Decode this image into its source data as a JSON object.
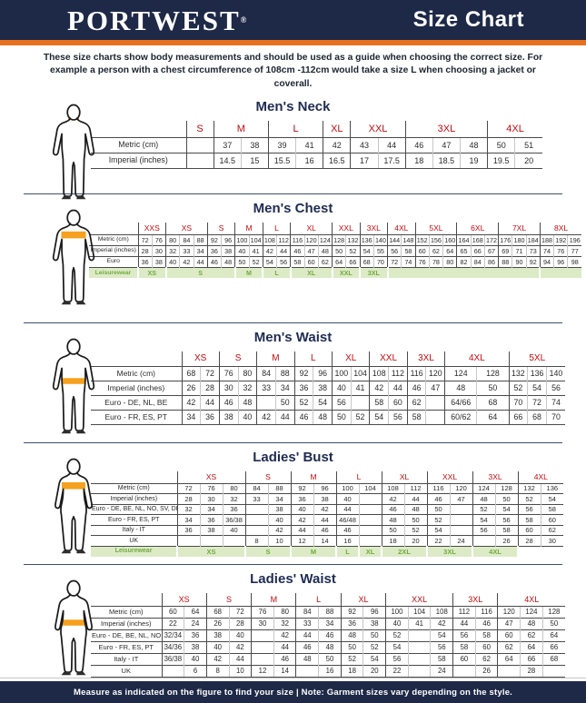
{
  "header": {
    "brand": "PORTWEST",
    "brand_reg": "®",
    "title": "Size Chart"
  },
  "intro": "These size charts show body measurements and should be used as a guide when choosing the correct size. For example a person with a chest circumference of 108cm -112cm would take a size L when choosing a jacket or coverall.",
  "footer": "Measure as indicated on the figure to find your size  |  Note: Garment sizes vary depending on the style.",
  "colors": {
    "navy": "#1e2947",
    "orange": "#e87120",
    "size_red": "#c20a10",
    "leisure_green_text": "#74a93f",
    "leisure_green_bg": "#dcebc6",
    "figure_highlight": "#f5a01e"
  },
  "sections": [
    {
      "title": "Men's Neck",
      "figure": {
        "body": "male",
        "highlight": "neck"
      },
      "table": {
        "groups": [
          {
            "label": "S",
            "span": 1
          },
          {
            "label": "M",
            "span": 2
          },
          {
            "label": "L",
            "span": 2
          },
          {
            "label": "XL",
            "span": 1
          },
          {
            "label": "XXL",
            "span": 2
          },
          {
            "label": "3XL",
            "span": 3
          },
          {
            "label": "4XL",
            "span": 2
          }
        ],
        "rows": [
          {
            "label": "Metric  (cm)",
            "cells": [
              "",
              "37",
              "38",
              "39",
              "41",
              "42",
              "43",
              "44",
              "46",
              "47",
              "48",
              "50",
              "51"
            ]
          },
          {
            "label": "Imperial (inches)",
            "cells": [
              "",
              "14.5",
              "15",
              "15.5",
              "16",
              "16.5",
              "17",
              "17.5",
              "18",
              "18.5",
              "19",
              "19.5",
              "20"
            ]
          }
        ]
      }
    },
    {
      "title": "Men's Chest",
      "figure": {
        "body": "male",
        "highlight": "chest"
      },
      "table": {
        "groups": [
          {
            "label": "XXS",
            "span": 2
          },
          {
            "label": "XS",
            "span": 3
          },
          {
            "label": "S",
            "span": 2
          },
          {
            "label": "M",
            "span": 2
          },
          {
            "label": "L",
            "span": 2
          },
          {
            "label": "XL",
            "span": 3
          },
          {
            "label": "XXL",
            "span": 2
          },
          {
            "label": "3XL",
            "span": 2
          },
          {
            "label": "4XL",
            "span": 2
          },
          {
            "label": "5XL",
            "span": 3
          },
          {
            "label": "6XL",
            "span": 3
          },
          {
            "label": "7XL",
            "span": 3
          },
          {
            "label": "8XL",
            "span": 3
          }
        ],
        "rows": [
          {
            "label": "Metric  (cm)",
            "cells": [
              "72",
              "76",
              "80",
              "84",
              "88",
              "92",
              "96",
              "100",
              "104",
              "108",
              "112",
              "116",
              "120",
              "124",
              "128",
              "132",
              "136",
              "140",
              "144",
              "148",
              "152",
              "156",
              "160",
              "164",
              "168",
              "172",
              "176",
              "180",
              "184",
              "188",
              "192",
              "196"
            ]
          },
          {
            "label": "Imperial (inches)",
            "cells": [
              "28",
              "30",
              "32",
              "33",
              "34",
              "36",
              "38",
              "40",
              "41",
              "42",
              "44",
              "46",
              "47",
              "48",
              "50",
              "52",
              "54",
              "55",
              "56",
              "58",
              "60",
              "62",
              "64",
              "65",
              "66",
              "67",
              "69",
              "71",
              "73",
              "74",
              "76",
              "77"
            ]
          },
          {
            "label": "Euro",
            "cells": [
              "36",
              "38",
              "40",
              "42",
              "44",
              "46",
              "48",
              "50",
              "52",
              "54",
              "56",
              "58",
              "60",
              "62",
              "64",
              "66",
              "68",
              "70",
              "72",
              "74",
              "76",
              "78",
              "80",
              "82",
              "84",
              "86",
              "88",
              "90",
              "92",
              "94",
              "96",
              "98"
            ]
          },
          {
            "label": "Leisurewear",
            "cls": "leisure",
            "cells": [
              {
                "t": "XS",
                "s": 2
              },
              {
                "t": "S",
                "s": 5
              },
              {
                "t": "M",
                "s": 2
              },
              {
                "t": "L",
                "s": 2
              },
              {
                "t": "XL",
                "s": 3
              },
              {
                "t": "XXL",
                "s": 2
              },
              {
                "t": "3XL",
                "s": 2
              },
              {
                "t": "",
                "s": 11
              },
              {
                "t": "",
                "s": 3
              }
            ]
          }
        ]
      }
    },
    {
      "title": "Men's Waist",
      "figure": {
        "body": "male",
        "highlight": "waist"
      },
      "table": {
        "groups": [
          {
            "label": "XS",
            "span": 2
          },
          {
            "label": "S",
            "span": 2
          },
          {
            "label": "M",
            "span": 2
          },
          {
            "label": "L",
            "span": 2
          },
          {
            "label": "XL",
            "span": 2
          },
          {
            "label": "XXL",
            "span": 2
          },
          {
            "label": "3XL",
            "span": 2
          },
          {
            "label": "4XL",
            "span": 2,
            "w": 1.7
          },
          {
            "label": "5XL",
            "span": 3
          }
        ],
        "rows": [
          {
            "label": "Metric  (cm)",
            "cells": [
              "68",
              "72",
              "76",
              "80",
              "84",
              "88",
              "92",
              "96",
              "100",
              "104",
              "108",
              "112",
              "116",
              "120",
              "124",
              "128",
              "132",
              "136",
              "140"
            ]
          },
          {
            "label": "Imperial (inches)",
            "cells": [
              "26",
              "28",
              "30",
              "32",
              "33",
              "34",
              "36",
              "38",
              "40",
              "41",
              "42",
              "44",
              "46",
              "47",
              "48",
              "50",
              "52",
              "54",
              "56"
            ]
          },
          {
            "label": "Euro - DE, NL, BE",
            "cells": [
              "42",
              "44",
              "46",
              "48",
              "",
              "50",
              "52",
              "54",
              "56",
              "",
              "58",
              "60",
              "62",
              "",
              "64/66",
              "68",
              "70",
              "72",
              "74"
            ]
          },
          {
            "label": "Euro - FR, ES, PT",
            "cells": [
              "34",
              "36",
              "38",
              "40",
              "42",
              "44",
              "46",
              "48",
              "50",
              "52",
              "54",
              "56",
              "58",
              "",
              "60/62",
              "64",
              "66",
              "68",
              "70"
            ]
          }
        ]
      }
    },
    {
      "title": "Ladies' Bust",
      "figure": {
        "body": "female",
        "highlight": "bust"
      },
      "table": {
        "groups": [
          {
            "label": "XS",
            "span": 3
          },
          {
            "label": "S",
            "span": 2
          },
          {
            "label": "M",
            "span": 2
          },
          {
            "label": "L",
            "span": 2
          },
          {
            "label": "XL",
            "span": 2
          },
          {
            "label": "XXL",
            "span": 2
          },
          {
            "label": "3XL",
            "span": 2
          },
          {
            "label": "4XL",
            "span": 2
          }
        ],
        "rows": [
          {
            "label": "Metric  (cm)",
            "cells": [
              "72",
              "76",
              "80",
              "84",
              "88",
              "92",
              "96",
              "100",
              "104",
              "108",
              "112",
              "116",
              "120",
              "124",
              "128",
              "132",
              "136"
            ]
          },
          {
            "label": "Imperial (inches)",
            "cells": [
              "28",
              "30",
              "32",
              "33",
              "34",
              "36",
              "38",
              "40",
              "",
              "42",
              "44",
              "46",
              "47",
              "48",
              "50",
              "52",
              "54"
            ]
          },
          {
            "label": "Euro -  DE, BE, NL, NO, SV, DK",
            "cells": [
              "32",
              "34",
              "36",
              "",
              "38",
              "40",
              "42",
              "44",
              "",
              "46",
              "48",
              "50",
              "",
              "52",
              "54",
              "56",
              "58"
            ]
          },
          {
            "label": "Euro - FR, ES, PT",
            "cells": [
              "34",
              "36",
              "36/38",
              "",
              "40",
              "42",
              "44",
              "46/48",
              "",
              "48",
              "50",
              "52",
              "",
              "54",
              "56",
              "58",
              "60"
            ]
          },
          {
            "label": "Italy - IT",
            "cells": [
              "36",
              "38",
              "40",
              "",
              "42",
              "44",
              "46",
              "46",
              "",
              "50",
              "52",
              "54",
              "",
              "56",
              "58",
              "60",
              "62"
            ]
          },
          {
            "label": "UK",
            "cells": [
              "",
              "",
              "",
              "8",
              "10",
              "12",
              "14",
              "16",
              "",
              "18",
              "20",
              "22",
              "24",
              "",
              "26",
              "28",
              "30"
            ]
          },
          {
            "label": "Leisurewear",
            "cls": "leisure",
            "cells": [
              {
                "t": "XS",
                "s": 3
              },
              {
                "t": "S",
                "s": 2
              },
              {
                "t": "M",
                "s": 2
              },
              {
                "t": "L",
                "s": 1
              },
              {
                "t": "XL",
                "s": 1
              },
              {
                "t": "2XL",
                "s": 2
              },
              {
                "t": "3XL",
                "s": 2
              },
              {
                "t": "4XL",
                "s": 2
              },
              {
                "t": "",
                "s": 2,
                "plain": true
              }
            ]
          }
        ]
      }
    },
    {
      "title": "Ladies' Waist",
      "figure": {
        "body": "female",
        "highlight": "waist"
      },
      "table": {
        "groups": [
          {
            "label": "XS",
            "span": 2
          },
          {
            "label": "S",
            "span": 2
          },
          {
            "label": "M",
            "span": 2
          },
          {
            "label": "L",
            "span": 2
          },
          {
            "label": "XL",
            "span": 2
          },
          {
            "label": "XXL",
            "span": 3
          },
          {
            "label": "3XL",
            "span": 2
          },
          {
            "label": "4XL",
            "span": 3
          }
        ],
        "rows": [
          {
            "label": "Metric  (cm)",
            "cells": [
              "60",
              "64",
              "68",
              "72",
              "76",
              "80",
              "84",
              "88",
              "92",
              "96",
              "100",
              "104",
              "108",
              "112",
              "116",
              "120",
              "124",
              "128"
            ]
          },
          {
            "label": "Imperial (inches)",
            "cells": [
              "22",
              "24",
              "26",
              "28",
              "30",
              "32",
              "33",
              "34",
              "36",
              "38",
              "40",
              "41",
              "42",
              "44",
              "46",
              "47",
              "48",
              "50"
            ]
          },
          {
            "label": "Euro - DE, BE, NL, NO, SV, DK",
            "cells": [
              "32/34",
              "36",
              "38",
              "40",
              "",
              "42",
              "44",
              "46",
              "48",
              "50",
              "52",
              "",
              "54",
              "56",
              "58",
              "60",
              "62",
              "64"
            ]
          },
          {
            "label": "Euro - FR, ES, PT",
            "cells": [
              "34/36",
              "38",
              "40",
              "42",
              "",
              "44",
              "46",
              "48",
              "50",
              "52",
              "54",
              "",
              "56",
              "58",
              "60",
              "62",
              "64",
              "66"
            ]
          },
          {
            "label": "Italy - IT",
            "cells": [
              "36/38",
              "40",
              "42",
              "44",
              "",
              "46",
              "48",
              "50",
              "52",
              "54",
              "56",
              "",
              "58",
              "60",
              "62",
              "64",
              "66",
              "68"
            ]
          },
          {
            "label": "UK",
            "cells": [
              "",
              "6",
              "8",
              "10",
              "12",
              "14",
              "",
              "16",
              "18",
              "20",
              "22",
              "",
              "24",
              "",
              "26",
              "",
              "28",
              ""
            ]
          }
        ]
      }
    }
  ]
}
